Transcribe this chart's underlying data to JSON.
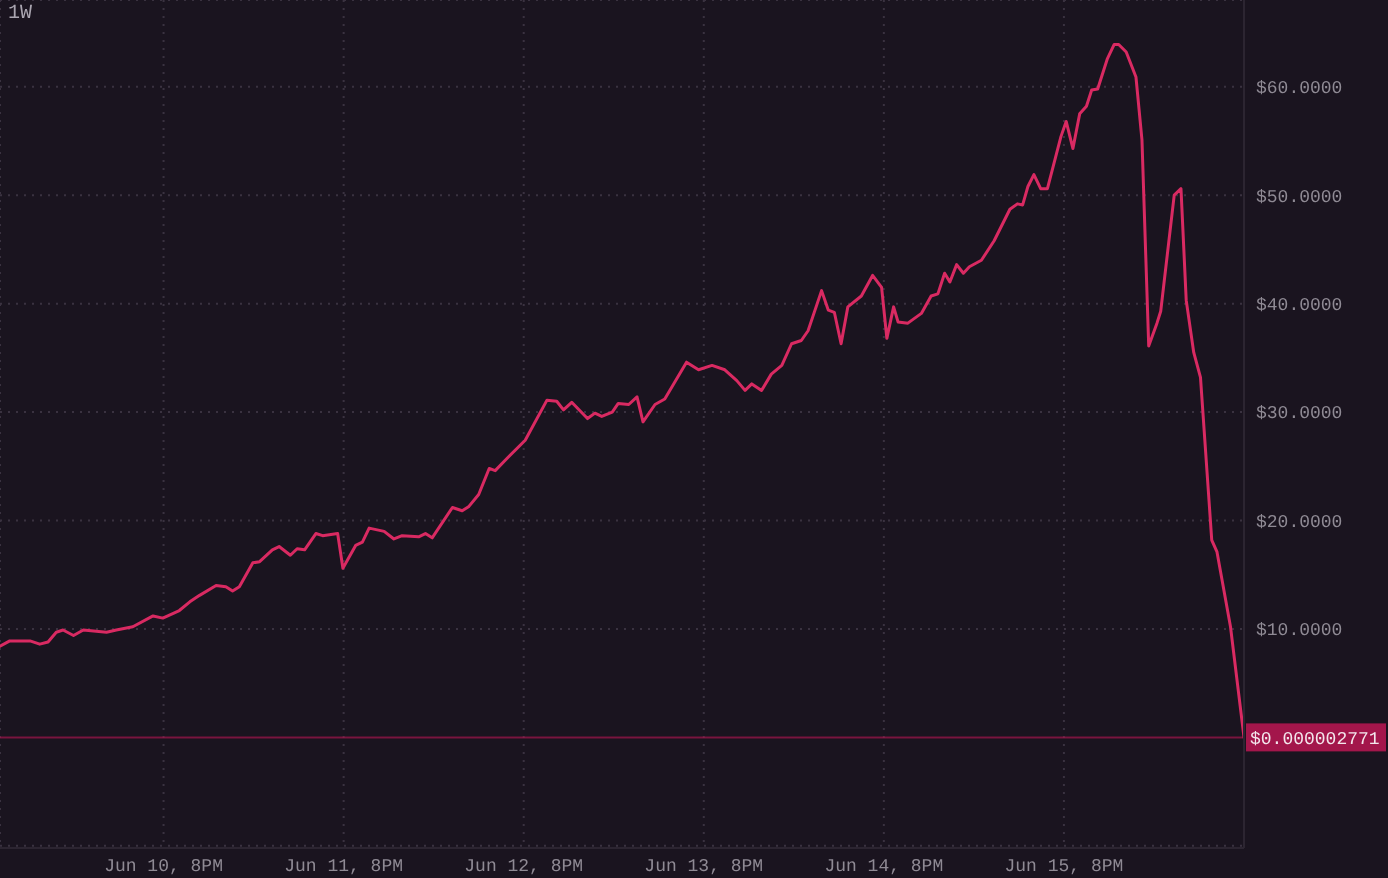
{
  "chart_data": {
    "type": "line",
    "title": "1W",
    "x": [
      "--06-09T22:12",
      "--06-09T23:30",
      "--06-10T02:12",
      "--06-10T03:30",
      "--06-10T04:36",
      "--06-10T05:42",
      "--06-10T06:36",
      "--06-10T08:00",
      "--06-10T09:18",
      "--06-10T12:24",
      "--06-10T13:42",
      "--06-10T15:54",
      "--06-10T18:36",
      "--06-10T19:54",
      "--06-10T22:06",
      "--06-10T23:30",
      "--06-11T00:48",
      "--06-11T03:00",
      "--06-11T04:18",
      "--06-11T05:12",
      "--06-11T06:06",
      "--06-11T07:54",
      "--06-11T08:48",
      "--06-11T10:30",
      "--06-11T11:24",
      "--06-11T12:54",
      "--06-11T13:48",
      "--06-11T14:48",
      "--06-11T16:18",
      "--06-11T17:12",
      "--06-11T19:12",
      "--06-11T19:54",
      "--06-11T21:36",
      "--06-11T22:30",
      "--06-11T23:24",
      "--06-12T01:24",
      "--06-12T02:42",
      "--06-12T03:48",
      "--06-12T06:00",
      "--06-12T06:54",
      "--06-12T07:48",
      "--06-12T10:30",
      "--06-12T11:48",
      "--06-12T12:42",
      "--06-12T14:00",
      "--06-12T15:24",
      "--06-12T16:12",
      "--06-12T17:36",
      "--06-12T20:12",
      "--06-12T23:06",
      "--06-13T00:24",
      "--06-13T01:18",
      "--06-13T02:24",
      "--06-13T04:30",
      "--06-13T05:30",
      "--06-13T06:24",
      "--06-13T07:48",
      "--06-13T08:36",
      "--06-13T10:00",
      "--06-13T11:06",
      "--06-13T11:54",
      "--06-13T13:30",
      "--06-13T14:48",
      "--06-13T17:42",
      "--06-13T19:18",
      "--06-13T21:06",
      "--06-13T22:48",
      "--06-14T00:24",
      "--06-14T01:30",
      "--06-14T02:24",
      "--06-14T03:42",
      "--06-14T05:00",
      "--06-14T06:24",
      "--06-14T07:42",
      "--06-14T09:00",
      "--06-14T09:54",
      "--06-14T11:42",
      "--06-14T12:36",
      "--06-14T13:24",
      "--06-14T14:18",
      "--06-14T15:12",
      "--06-14T17:00",
      "--06-14T18:30",
      "--06-14T19:42",
      "--06-14T20:24",
      "--06-14T21:18",
      "--06-14T21:54",
      "--06-14T23:12",
      "--06-15T01:00",
      "--06-15T02:18",
      "--06-15T03:12",
      "--06-15T04:06",
      "--06-15T04:48",
      "--06-15T05:42",
      "--06-15T06:36",
      "--06-15T07:24",
      "--06-15T09:00",
      "--06-15T10:42",
      "--06-15T12:48",
      "--06-15T13:48",
      "--06-15T14:30",
      "--06-15T15:12",
      "--06-15T16:00",
      "--06-15T16:54",
      "--06-15T17:48",
      "--06-15T19:36",
      "--06-15T20:18",
      "--06-15T21:12",
      "--06-15T22:06",
      "--06-15T23:00",
      "--06-15T23:42",
      "--06-16T00:30",
      "--06-16T01:48",
      "--06-16T02:42",
      "--06-16T03:18",
      "--06-16T04:18",
      "--06-16T05:36",
      "--06-16T06:24",
      "--06-16T07:18",
      "--06-16T08:24",
      "--06-16T08:54",
      "--06-16T10:42",
      "--06-16T11:36",
      "--06-16T12:18",
      "--06-16T13:18",
      "--06-16T14:12",
      "--06-16T15:42",
      "--06-16T16:24",
      "--06-16T18:12",
      "--06-16T20:00"
    ],
    "series": [
      {
        "color": "#d92a62",
        "values": [
          8.4,
          8.9,
          8.9,
          8.6,
          8.8,
          9.7,
          9.9,
          9.4,
          9.9,
          9.7,
          9.9,
          10.2,
          11.2,
          11.0,
          11.7,
          12.5,
          13.1,
          14.0,
          13.9,
          13.5,
          13.9,
          16.1,
          16.2,
          17.3,
          17.6,
          16.8,
          17.4,
          17.3,
          18.8,
          18.6,
          18.8,
          15.6,
          17.7,
          18.0,
          19.3,
          19.0,
          18.3,
          18.6,
          18.5,
          18.8,
          18.4,
          21.2,
          20.9,
          21.3,
          22.4,
          24.8,
          24.6,
          25.6,
          27.4,
          31.1,
          31.0,
          30.2,
          30.9,
          29.4,
          29.9,
          29.6,
          30.0,
          30.8,
          30.7,
          31.4,
          29.1,
          30.7,
          31.2,
          34.6,
          33.9,
          34.3,
          33.9,
          32.9,
          32.0,
          32.6,
          32.0,
          33.5,
          34.3,
          36.3,
          36.6,
          37.5,
          41.2,
          39.4,
          39.2,
          36.3,
          39.7,
          40.7,
          42.6,
          41.5,
          36.8,
          39.7,
          38.3,
          38.2,
          39.1,
          40.7,
          40.9,
          42.8,
          42.0,
          43.6,
          42.8,
          43.4,
          44.0,
          45.8,
          48.7,
          49.2,
          49.1,
          50.8,
          51.9,
          50.6,
          50.6,
          55.4,
          56.8,
          54.3,
          57.5,
          58.2,
          59.7,
          59.8,
          62.6,
          63.9,
          63.9,
          63.2,
          60.9,
          55.1,
          36.1,
          38.2,
          39.3,
          50.0,
          50.6,
          40.3,
          35.5,
          33.2,
          18.2,
          17.1,
          10.2,
          2.771e-06
        ]
      }
    ],
    "xlim": [
      "--06-09T22:12",
      "--06-16T20:00"
    ],
    "xticks": [
      {
        "value": "--06-10T20:00",
        "label": "Jun 10, 8PM"
      },
      {
        "value": "--06-11T20:00",
        "label": "Jun 11, 8PM"
      },
      {
        "value": "--06-12T20:00",
        "label": "Jun 12, 8PM"
      },
      {
        "value": "--06-13T20:00",
        "label": "Jun 13, 8PM"
      },
      {
        "value": "--06-14T20:00",
        "label": "Jun 14, 8PM"
      },
      {
        "value": "--06-15T20:00",
        "label": "Jun 15, 8PM"
      }
    ],
    "ylim": [
      -10.2,
      68
    ],
    "yticks": [
      {
        "value": -10,
        "label": null
      },
      {
        "value": 10,
        "label": "$10.0000"
      },
      {
        "value": 20,
        "label": "$20.0000"
      },
      {
        "value": 30,
        "label": "$30.0000"
      },
      {
        "value": 40,
        "label": "$40.0000"
      },
      {
        "value": 50,
        "label": "$50.0000"
      },
      {
        "value": 60,
        "label": "$60.0000"
      }
    ],
    "ref_lines": [
      {
        "axis": "y",
        "value": 2.771e-06,
        "label": "$0.000002771",
        "color": "#a3164b"
      }
    ],
    "grid": true,
    "marker": "none",
    "line_style": "solid"
  }
}
